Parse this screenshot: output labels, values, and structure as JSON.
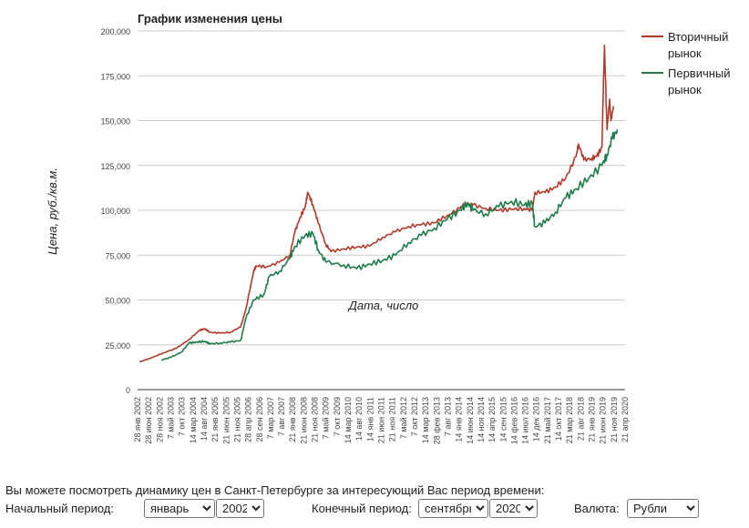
{
  "chart_data": {
    "type": "line",
    "title": "График изменения цены",
    "xlabel": "Дата, число",
    "ylabel": "Цена, руб./кв.м.",
    "ylim": [
      0,
      200000
    ],
    "y_ticks": [
      "0",
      "25,000",
      "50,000",
      "75,000",
      "100,000",
      "125,000",
      "150,000",
      "175,000",
      "200,000"
    ],
    "x_ticks": [
      "28 янв 2002",
      "28 июн 2002",
      "28 ноя 2002",
      "7 май 2003",
      "7 окт 2003",
      "14 мар 2004",
      "14 авг 2004",
      "21 янв 2005",
      "21 июн 2005",
      "21 ноя 2005",
      "28 апр 2006",
      "28 сен 2006",
      "7 мар 2007",
      "7 авг 2007",
      "21 янв 2008",
      "21 июн 2008",
      "21 ноя 2008",
      "7 май 2009",
      "7 окт 2009",
      "14 мар 2010",
      "14 авг 2010",
      "14 янв 2011",
      "21 июн 2011",
      "21 ноя 2011",
      "7 май 2012",
      "7 окт 2012",
      "14 мар 2013",
      "28 фев 2013",
      "7 авг 2013",
      "14 янв 2014",
      "14 июн 2014",
      "14 ноя 2014",
      "14 апр 2015",
      "14 сен 2015",
      "14 фев 2016",
      "14 июл 2016",
      "14 дек 2016",
      "21 май 2017",
      "14 окт 2017",
      "21 мар 2018",
      "21 авг 2018",
      "21 янв 2019",
      "21 июн 2019",
      "21 ноя 2019",
      "21 апр 2020"
    ],
    "grid": true,
    "legend_position": "right",
    "series": [
      {
        "name": "Вторичный рынок",
        "color": "#b23a2b",
        "points": [
          [
            2002.08,
            15500
          ],
          [
            2002.5,
            17500
          ],
          [
            2003.0,
            20500
          ],
          [
            2003.5,
            23000
          ],
          [
            2004.0,
            28000
          ],
          [
            2004.4,
            33000
          ],
          [
            2004.6,
            34000
          ],
          [
            2004.8,
            32000
          ],
          [
            2005.2,
            31500
          ],
          [
            2005.6,
            32000
          ],
          [
            2006.0,
            35000
          ],
          [
            2006.2,
            45000
          ],
          [
            2006.5,
            66000
          ],
          [
            2006.6,
            69000
          ],
          [
            2007.0,
            68500
          ],
          [
            2007.5,
            71000
          ],
          [
            2007.9,
            75000
          ],
          [
            2008.1,
            88000
          ],
          [
            2008.3,
            96000
          ],
          [
            2008.5,
            102000
          ],
          [
            2008.6,
            110000
          ],
          [
            2008.8,
            103000
          ],
          [
            2009.0,
            93000
          ],
          [
            2009.3,
            81000
          ],
          [
            2009.5,
            77000
          ],
          [
            2010.0,
            78500
          ],
          [
            2010.5,
            79500
          ],
          [
            2011.0,
            80000
          ],
          [
            2011.5,
            85000
          ],
          [
            2012.0,
            88000
          ],
          [
            2012.5,
            91000
          ],
          [
            2013.0,
            92000
          ],
          [
            2013.5,
            93000
          ],
          [
            2014.0,
            97000
          ],
          [
            2014.5,
            101000
          ],
          [
            2014.7,
            104000
          ],
          [
            2015.0,
            103000
          ],
          [
            2015.5,
            101000
          ],
          [
            2016.0,
            100000
          ],
          [
            2016.5,
            100500
          ],
          [
            2017.0,
            101000
          ],
          [
            2017.3,
            100000
          ],
          [
            2017.4,
            110000
          ],
          [
            2017.8,
            110000
          ],
          [
            2018.2,
            113000
          ],
          [
            2018.6,
            118000
          ],
          [
            2019.0,
            130000
          ],
          [
            2019.1,
            137000
          ],
          [
            2019.3,
            128000
          ],
          [
            2019.6,
            129000
          ],
          [
            2019.8,
            130000
          ],
          [
            2020.0,
            135000
          ],
          [
            2020.1,
            192000
          ],
          [
            2020.2,
            145000
          ],
          [
            2020.3,
            162000
          ],
          [
            2020.35,
            150000
          ],
          [
            2020.45,
            158000
          ]
        ]
      },
      {
        "name": "Первичный рынок",
        "color": "#1e7b4a",
        "points": [
          [
            2002.92,
            16500
          ],
          [
            2003.3,
            18000
          ],
          [
            2003.7,
            21000
          ],
          [
            2004.0,
            26000
          ],
          [
            2004.3,
            26500
          ],
          [
            2004.6,
            27000
          ],
          [
            2004.8,
            25500
          ],
          [
            2005.2,
            26000
          ],
          [
            2005.6,
            26500
          ],
          [
            2006.0,
            27500
          ],
          [
            2006.2,
            40000
          ],
          [
            2006.5,
            50000
          ],
          [
            2006.9,
            53000
          ],
          [
            2007.1,
            63000
          ],
          [
            2007.5,
            66000
          ],
          [
            2007.9,
            73000
          ],
          [
            2008.1,
            80000
          ],
          [
            2008.5,
            86000
          ],
          [
            2008.8,
            87000
          ],
          [
            2009.0,
            78000
          ],
          [
            2009.3,
            71000
          ],
          [
            2010.0,
            69500
          ],
          [
            2010.5,
            67500
          ],
          [
            2011.0,
            70000
          ],
          [
            2011.5,
            72000
          ],
          [
            2012.0,
            75000
          ],
          [
            2012.5,
            82000
          ],
          [
            2013.0,
            86000
          ],
          [
            2013.5,
            90000
          ],
          [
            2014.0,
            95000
          ],
          [
            2014.5,
            100000
          ],
          [
            2014.8,
            104000
          ],
          [
            2015.0,
            100000
          ],
          [
            2015.5,
            98000
          ],
          [
            2016.0,
            102000
          ],
          [
            2016.5,
            105000
          ],
          [
            2017.0,
            103000
          ],
          [
            2017.3,
            104000
          ],
          [
            2017.4,
            91000
          ],
          [
            2017.8,
            93000
          ],
          [
            2018.2,
            99000
          ],
          [
            2018.6,
            107000
          ],
          [
            2019.0,
            112000
          ],
          [
            2019.5,
            118000
          ],
          [
            2020.0,
            125000
          ],
          [
            2020.2,
            131000
          ],
          [
            2020.4,
            140000
          ],
          [
            2020.6,
            145000
          ]
        ]
      }
    ]
  },
  "controls": {
    "intro_text": "Вы можете посмотреть динамику цен в Санкт-Петербурге за интересующий Вас период времени:",
    "start_label": "Начальный период:",
    "start_month": "январь",
    "start_year": "2002",
    "end_label": "Конечный период:",
    "end_month": "сентябрь",
    "end_year": "2020",
    "currency_label": "Валюта:",
    "currency": "Рубли"
  }
}
